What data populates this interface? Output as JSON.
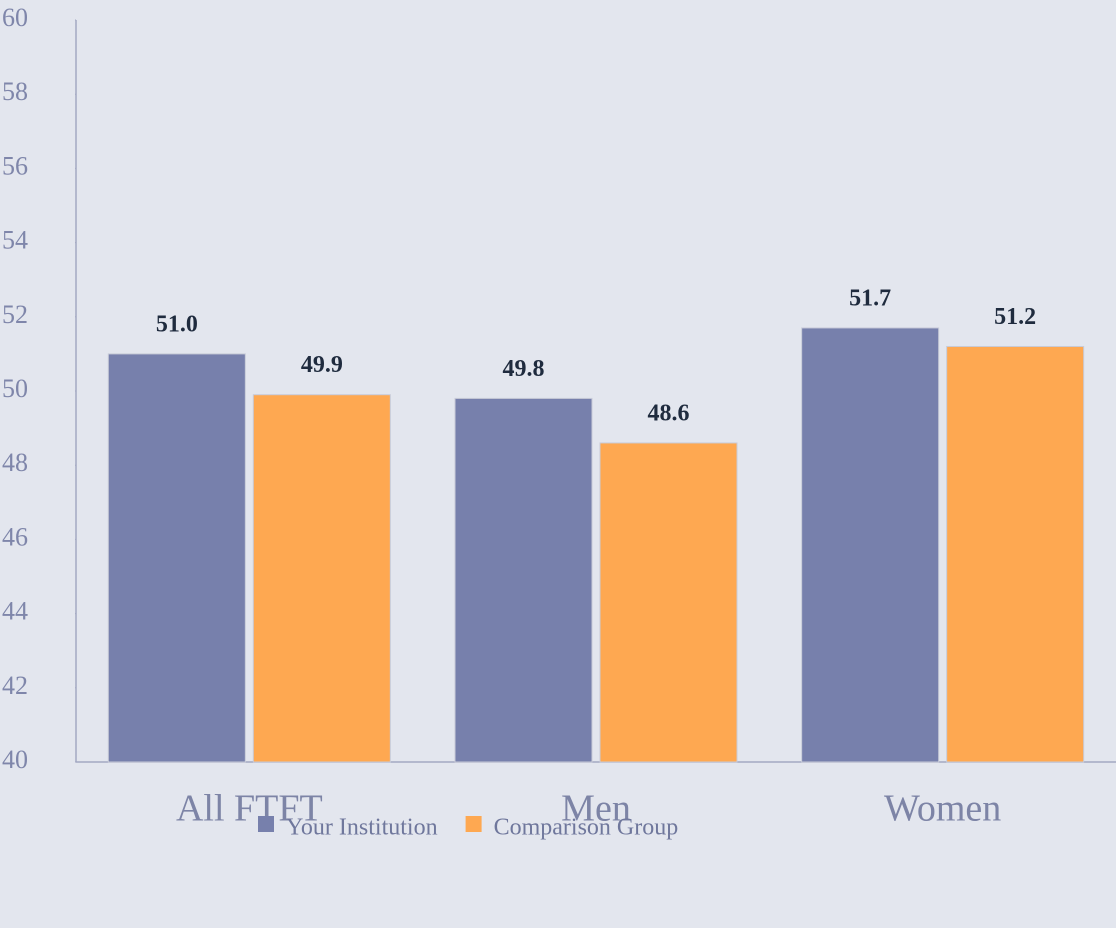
{
  "chart_data": {
    "type": "bar",
    "categories": [
      "All FTFT",
      "Men",
      "Women"
    ],
    "series": [
      {
        "name": "Your Institution",
        "color": "#7780ac",
        "values": [
          51.0,
          49.8,
          51.7
        ],
        "value_labels": [
          "51.0",
          "49.8",
          "51.7"
        ]
      },
      {
        "name": "Comparison Group",
        "color": "#fea851",
        "values": [
          49.9,
          48.6,
          51.2
        ],
        "value_labels": [
          "49.9",
          "48.6",
          "51.2"
        ]
      }
    ],
    "ylim": [
      40,
      60
    ],
    "yticks": [
      40,
      42,
      44,
      46,
      48,
      50,
      52,
      54,
      56,
      58,
      60
    ],
    "grid": false,
    "legend": "bottom"
  }
}
